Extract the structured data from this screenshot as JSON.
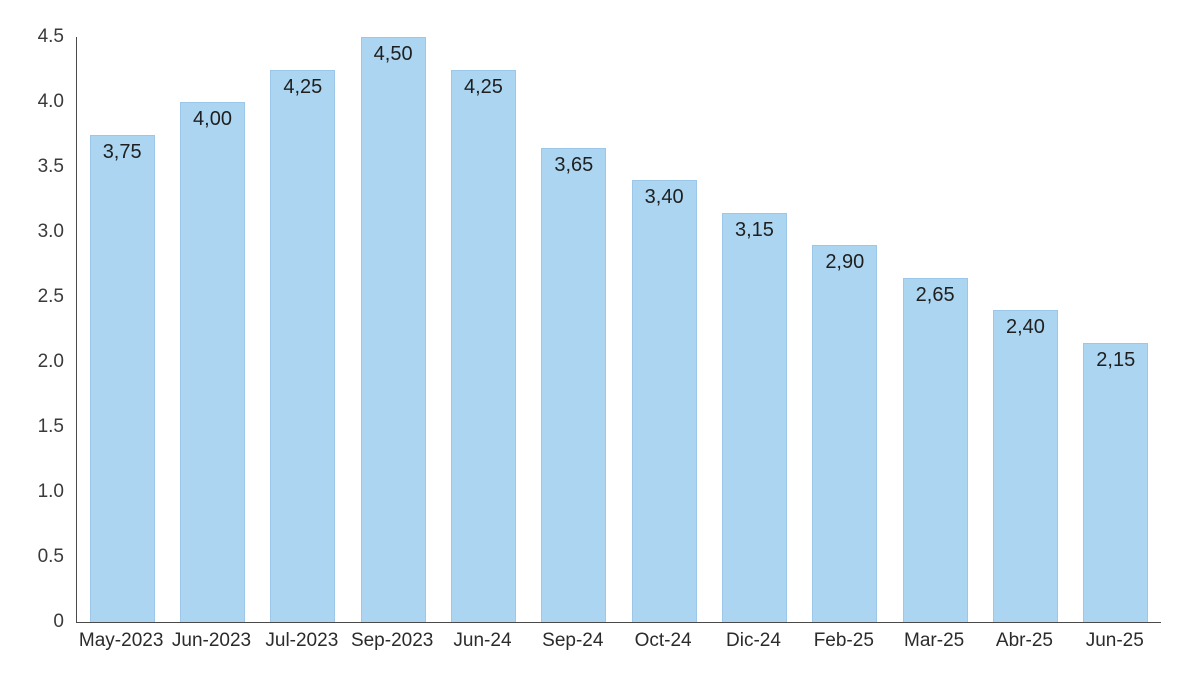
{
  "chart_data": {
    "type": "bar",
    "title": "",
    "xlabel": "",
    "ylabel": "",
    "categories": [
      "May-2023",
      "Jun-2023",
      "Jul-2023",
      "Sep-2023",
      "Jun-24",
      "Sep-24",
      "Oct-24",
      "Dic-24",
      "Feb-25",
      "Mar-25",
      "Abr-25",
      "Jun-25"
    ],
    "values": [
      3.75,
      4.0,
      4.25,
      4.5,
      4.25,
      3.65,
      3.4,
      3.15,
      2.9,
      2.65,
      2.4,
      2.15
    ],
    "value_labels": [
      "3,75",
      "4,00",
      "4,25",
      "4,50",
      "4,25",
      "3,65",
      "3,40",
      "3,15",
      "2,90",
      "2,65",
      "2,40",
      "2,15"
    ],
    "ylim": [
      0,
      4.5
    ],
    "yticks": [
      "0",
      "0.5",
      "1.0",
      "1.5",
      "2.0",
      "2.5",
      "3.0",
      "3.5",
      "4.0",
      "4.5"
    ],
    "grid": false,
    "legend": null,
    "value_label_position": "inside-top",
    "colors": {
      "bar_fill": "#abd5f0",
      "bar_border": "#9cc7e8",
      "axis_line": "#4a4a4a",
      "tick_text": "#3a3a3a",
      "value_label_text": "#1f1f1f",
      "background": "#ffffff"
    }
  }
}
